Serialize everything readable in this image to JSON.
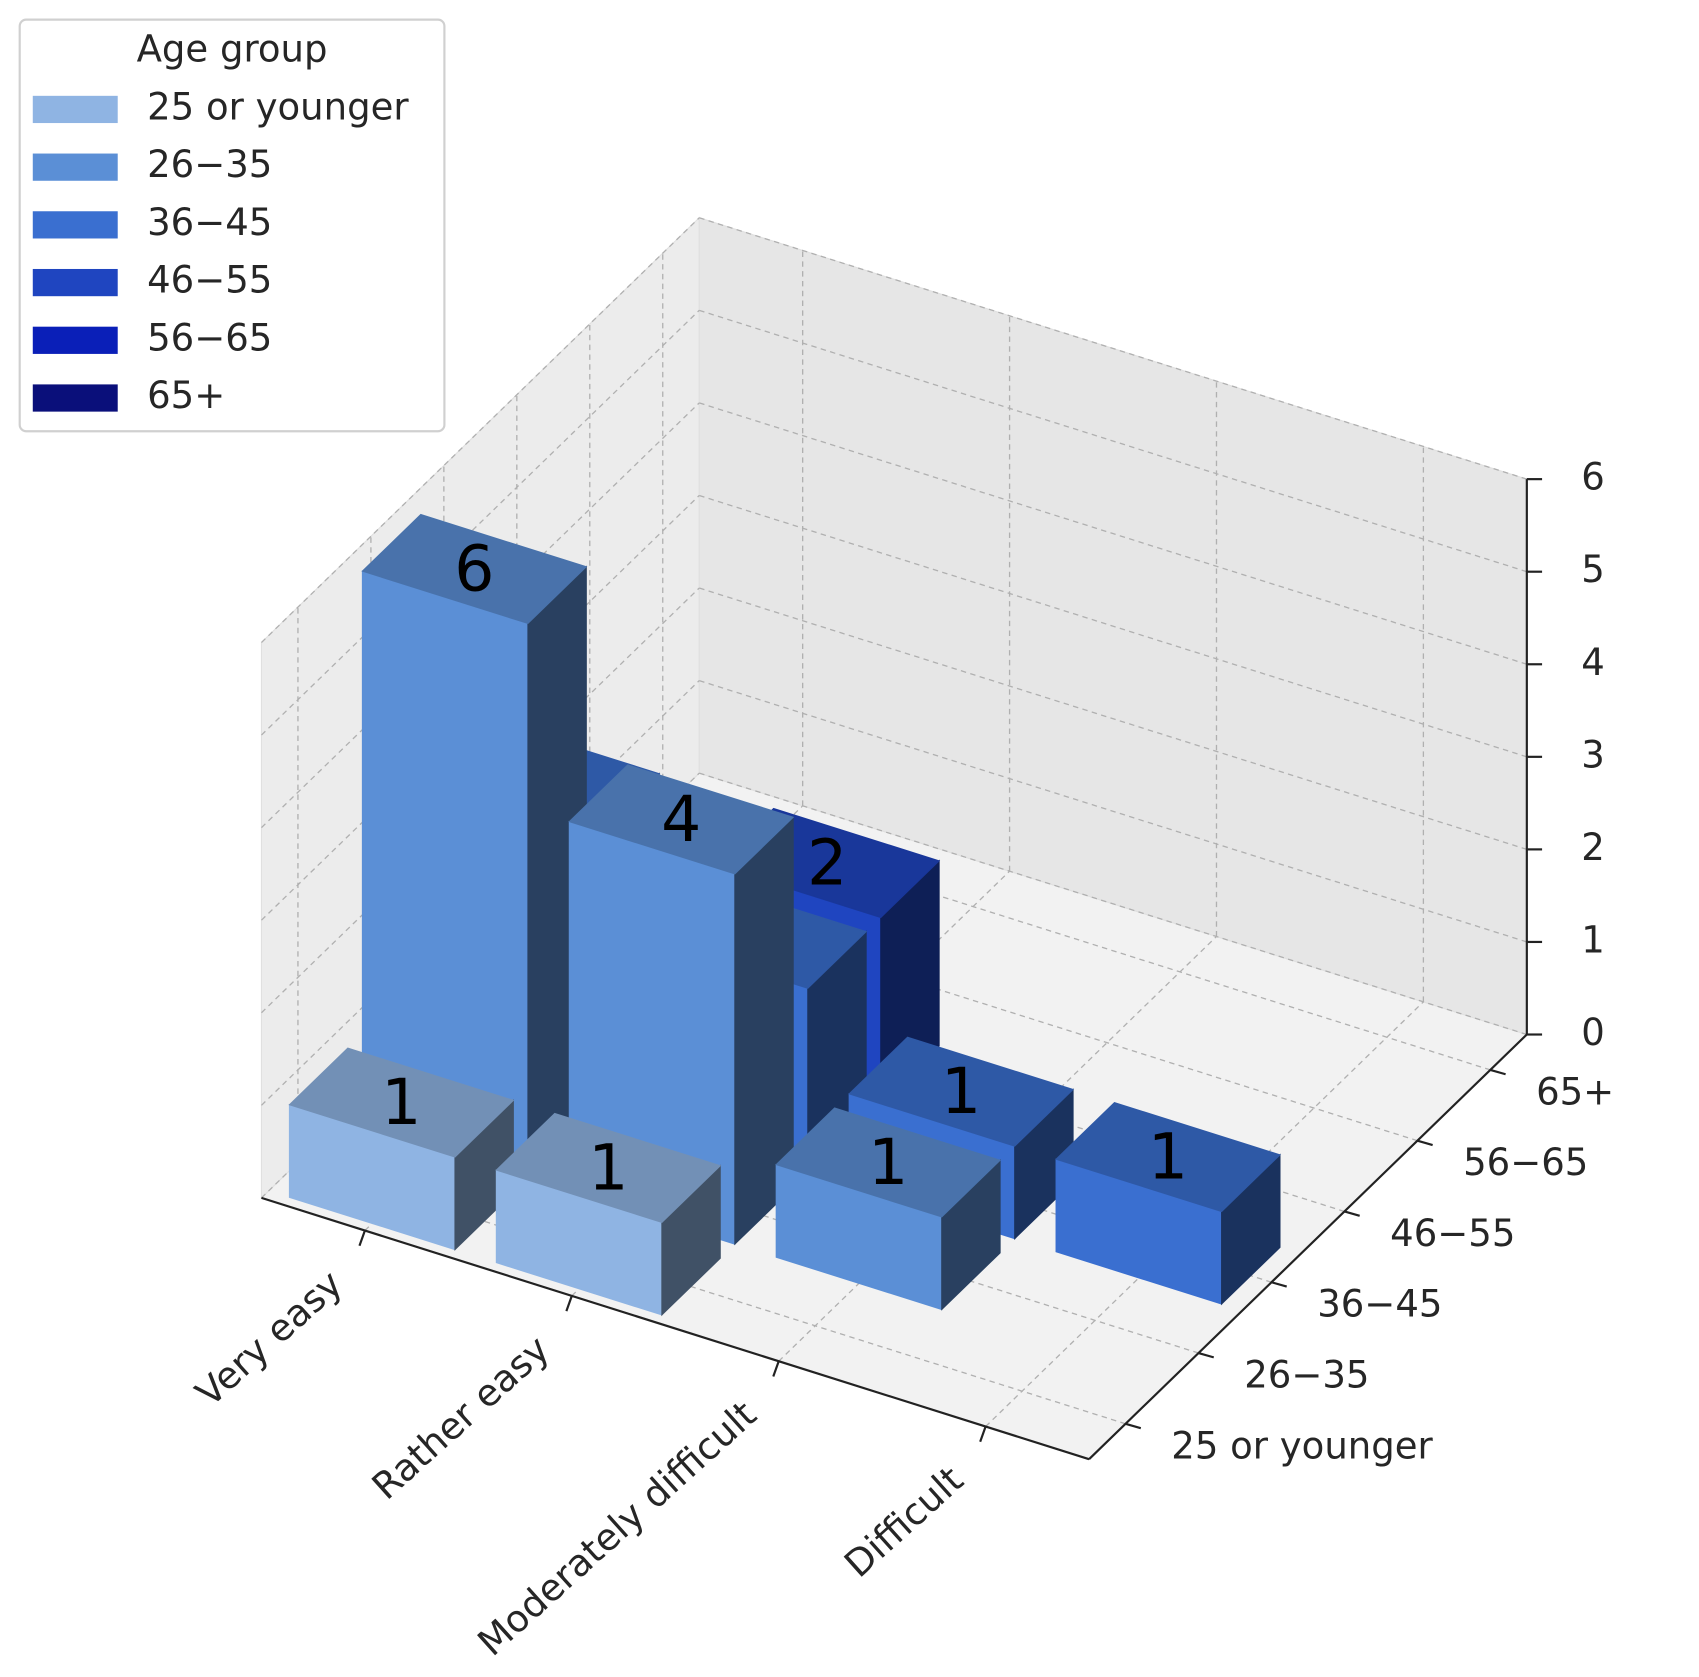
{
  "chart_data": {
    "type": "bar3d",
    "categories": [
      "Very easy",
      "Rather easy",
      "Moderately difficult",
      "Difficult"
    ],
    "legend_title": "Age group",
    "legend": "upper left",
    "series": [
      {
        "name": "25 or younger",
        "color": "#8fb4e3",
        "values": [
          1,
          1,
          null,
          null
        ]
      },
      {
        "name": "26−35",
        "color": "#5b8fd6",
        "values": [
          6,
          4,
          1,
          null
        ]
      },
      {
        "name": "36−45",
        "color": "#3a6fd0",
        "values": [
          3,
          2,
          1,
          1
        ]
      },
      {
        "name": "46−55",
        "color": "#1f45c0",
        "values": [
          null,
          2,
          null,
          null
        ]
      },
      {
        "name": "56−65",
        "color": "#0a1fb8",
        "values": [
          null,
          null,
          null,
          null
        ]
      },
      {
        "name": "65+",
        "color": "#0a0f7a",
        "values": [
          null,
          null,
          null,
          null
        ]
      }
    ],
    "zlim": [
      0,
      6
    ],
    "zticks": [
      0,
      1,
      2,
      3,
      4,
      5,
      6
    ],
    "grid": true
  }
}
